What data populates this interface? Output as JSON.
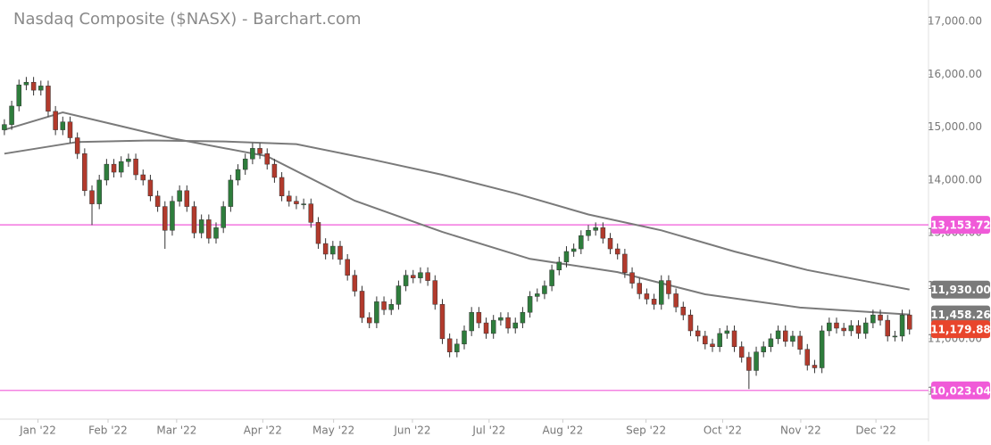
{
  "chart_data": {
    "type": "candlestick",
    "title": "Nasdaq Composite ($NASX) - Barchart.com",
    "up_color": "#2e7d3c",
    "down_color": "#b23a2c",
    "open": [
      14950,
      15050,
      15400,
      15800,
      15850,
      15700,
      15780,
      15300,
      14950,
      15100,
      14800,
      14500,
      13800,
      13550,
      14000,
      14300,
      14150,
      14350,
      14400,
      14100,
      14000,
      13700,
      13500,
      13050,
      13600,
      13800,
      13500,
      13000,
      13250,
      12900,
      13100,
      13500,
      14000,
      14200,
      14400,
      14600,
      14500,
      14300,
      14050,
      13700,
      13600,
      13550,
      13550,
      13200,
      12800,
      12600,
      12750,
      12500,
      12200,
      11900,
      11400,
      11300,
      11700,
      11550,
      11650,
      12000,
      12200,
      12150,
      12250,
      12100,
      11650,
      11000,
      10750,
      10900,
      11150,
      11500,
      11300,
      11100,
      11350,
      11400,
      11200,
      11300,
      11500,
      11800,
      11850,
      12000,
      12300,
      12450,
      12650,
      12700,
      12950,
      13050,
      13100,
      12900,
      12700,
      12600,
      12250,
      12050,
      11850,
      11750,
      11650,
      12100,
      11850,
      11600,
      11450,
      11150,
      11050,
      10900,
      10850,
      11100,
      11150,
      10850,
      10650,
      10400,
      10750,
      10850,
      11000,
      11150,
      10950,
      11050,
      10800,
      10500,
      10450,
      11150,
      11300,
      11200,
      11150,
      11250,
      11100,
      11300,
      11450,
      11350,
      11050,
      11050,
      11450
    ],
    "high": [
      15150,
      15500,
      15900,
      15950,
      15950,
      15880,
      15880,
      15400,
      15200,
      15200,
      14900,
      14600,
      13900,
      14100,
      14400,
      14400,
      14450,
      14500,
      14500,
      14200,
      14100,
      13800,
      13600,
      13700,
      13900,
      13900,
      13600,
      13350,
      13350,
      13200,
      13600,
      14100,
      14300,
      14500,
      14700,
      14700,
      14600,
      14400,
      14150,
      13800,
      13700,
      13650,
      13650,
      13300,
      12900,
      12850,
      12850,
      12600,
      12300,
      12000,
      11500,
      11800,
      11800,
      11750,
      12100,
      12300,
      12300,
      12350,
      12350,
      12200,
      11750,
      11100,
      11000,
      11250,
      11600,
      11600,
      11400,
      11450,
      11500,
      11500,
      11400,
      11600,
      11900,
      11950,
      12100,
      12400,
      12550,
      12750,
      12800,
      13050,
      13150,
      13200,
      13200,
      13000,
      12800,
      12700,
      12350,
      12150,
      11950,
      11850,
      12200,
      12200,
      11950,
      11700,
      11550,
      11250,
      11150,
      11000,
      11200,
      11250,
      11250,
      10950,
      10750,
      10850,
      10950,
      11100,
      11250,
      11250,
      11150,
      11150,
      10900,
      10600,
      11250,
      11400,
      11400,
      11300,
      11350,
      11350,
      11400,
      11550,
      11550,
      11450,
      11150,
      11550,
      11550
    ],
    "low": [
      14850,
      14950,
      15300,
      15700,
      15600,
      15600,
      15200,
      14850,
      14850,
      14700,
      14400,
      13700,
      13150,
      13450,
      13900,
      14050,
      14050,
      14250,
      14000,
      13900,
      13600,
      13400,
      12700,
      12950,
      13500,
      13400,
      12900,
      12900,
      12800,
      12800,
      13000,
      13400,
      13900,
      14100,
      14300,
      14400,
      14200,
      13950,
      13600,
      13500,
      13450,
      13450,
      13100,
      12700,
      12500,
      12500,
      12400,
      12100,
      11800,
      11300,
      11200,
      11200,
      11450,
      11450,
      11550,
      11900,
      12050,
      12050,
      12000,
      11550,
      10900,
      10650,
      10650,
      10800,
      11050,
      11200,
      11000,
      11000,
      11250,
      11100,
      11100,
      11200,
      11400,
      11700,
      11750,
      11900,
      12200,
      12350,
      12550,
      12600,
      12850,
      12950,
      12800,
      12600,
      12500,
      12150,
      11950,
      11750,
      11650,
      11550,
      11550,
      11750,
      11500,
      11350,
      11050,
      10950,
      10800,
      10750,
      10750,
      11000,
      10750,
      10550,
      10050,
      10300,
      10650,
      10750,
      10900,
      10850,
      10850,
      10700,
      10400,
      10350,
      10350,
      11050,
      11100,
      11050,
      11050,
      11000,
      11000,
      11200,
      11250,
      10950,
      10950,
      10950,
      11080
    ],
    "close": [
      15050,
      15400,
      15800,
      15850,
      15700,
      15780,
      15300,
      14950,
      15100,
      14800,
      14500,
      13800,
      13550,
      14000,
      14300,
      14150,
      14350,
      14400,
      14100,
      14000,
      13700,
      13500,
      13050,
      13600,
      13800,
      13500,
      13000,
      13250,
      12900,
      13100,
      13500,
      14000,
      14200,
      14400,
      14600,
      14500,
      14300,
      14050,
      13700,
      13600,
      13550,
      13550,
      13200,
      12800,
      12600,
      12750,
      12500,
      12200,
      11900,
      11400,
      11300,
      11700,
      11550,
      11650,
      12000,
      12200,
      12150,
      12250,
      12100,
      11650,
      11000,
      10750,
      10900,
      11150,
      11500,
      11300,
      11100,
      11350,
      11400,
      11200,
      11300,
      11500,
      11800,
      11850,
      12000,
      12300,
      12450,
      12650,
      12700,
      12950,
      13050,
      13100,
      12900,
      12700,
      12600,
      12250,
      12050,
      11850,
      11750,
      11650,
      12100,
      11850,
      11600,
      11450,
      11150,
      11050,
      10900,
      10850,
      11100,
      11150,
      10850,
      10650,
      10400,
      10750,
      10850,
      11000,
      11150,
      10950,
      11050,
      10800,
      10500,
      10450,
      11150,
      11300,
      11200,
      11150,
      11250,
      11100,
      11300,
      11450,
      11350,
      11050,
      11050,
      11450,
      11180
    ],
    "xticks": [
      {
        "value": 4.6,
        "label": "Jan '22"
      },
      {
        "value": 14.2,
        "label": "Feb '22"
      },
      {
        "value": 23.6,
        "label": "Mar '22"
      },
      {
        "value": 35.4,
        "label": "Apr '22"
      },
      {
        "value": 45.1,
        "label": "May '22"
      },
      {
        "value": 55.9,
        "label": "Jun '22"
      },
      {
        "value": 66.4,
        "label": "Jul '22"
      },
      {
        "value": 76.5,
        "label": "Aug '22"
      },
      {
        "value": 87.9,
        "label": "Sep '22"
      },
      {
        "value": 98.4,
        "label": "Oct '22"
      },
      {
        "value": 109.1,
        "label": "Nov '22"
      },
      {
        "value": 119.4,
        "label": "Dec '22"
      }
    ],
    "xlim": [
      -0.6,
      126.6
    ],
    "ylim": [
      9480,
      17405
    ],
    "yticks": [
      {
        "value": 10000,
        "label": "10,000.00"
      },
      {
        "value": 11000,
        "label": "11,000.00"
      },
      {
        "value": 12000,
        "label": "12,000.00"
      },
      {
        "value": 13000,
        "label": "13,000.00"
      },
      {
        "value": 14000,
        "label": "14,000.00"
      },
      {
        "value": 15000,
        "label": "15,000.00"
      },
      {
        "value": 16000,
        "label": "16,000.00"
      },
      {
        "value": 17000,
        "label": "17,000.00"
      }
    ],
    "lines": [
      {
        "color": "#7a7a7a",
        "x": [
          0,
          10,
          20,
          30,
          40,
          50,
          60,
          70,
          80,
          90,
          100,
          110,
          124
        ],
        "values": [
          14500,
          14720,
          14750,
          14730,
          14680,
          14400,
          14100,
          13750,
          13350,
          13050,
          12650,
          12300,
          11930
        ]
      },
      {
        "color": "#7a7a7a",
        "x": [
          0,
          8,
          23,
          36,
          48,
          60,
          72,
          84,
          96,
          109,
          124
        ],
        "values": [
          14950,
          15280,
          14790,
          14450,
          13610,
          13020,
          12510,
          12260,
          11840,
          11590,
          11458.26
        ]
      }
    ],
    "hlines": [
      {
        "value": 13153.72,
        "label": "13,153.72",
        "color": "#f05ad8"
      },
      {
        "value": 10023.04,
        "label": "10,023.04",
        "color": "#f05ad8"
      }
    ],
    "price_labels": [
      {
        "value": 11930,
        "label": "11,930.00",
        "color": "#7a7a7a"
      },
      {
        "value": 11458.26,
        "label": "11,458.26",
        "color": "#7a7a7a"
      },
      {
        "value": 11179.88,
        "label": "11,179.88",
        "color": "#e8452c"
      }
    ]
  }
}
